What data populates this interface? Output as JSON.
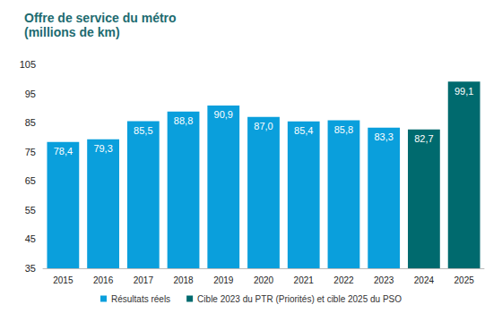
{
  "chart_data": {
    "type": "bar",
    "title": "Offre de service du métro",
    "subtitle": "(millions de km)",
    "categories": [
      "2015",
      "2016",
      "2017",
      "2018",
      "2019",
      "2020",
      "2021",
      "2022",
      "2023",
      "2024",
      "2025"
    ],
    "series": [
      {
        "name": "Résultats réels",
        "color": "#0a9fdc",
        "values": [
          78.4,
          79.3,
          85.5,
          88.8,
          90.9,
          87.0,
          85.4,
          85.8,
          83.3,
          null,
          null
        ],
        "value_labels": [
          "78,4",
          "79,3",
          "85,5",
          "88,8",
          "90,9",
          "87,0",
          "85,4",
          "85,8",
          "83,3",
          null,
          null
        ]
      },
      {
        "name": "Cible 2023 du PTR (Priorités) et cible 2025 du PSO",
        "color": "#006a6e",
        "values": [
          null,
          null,
          null,
          null,
          null,
          null,
          null,
          null,
          null,
          82.7,
          99.1
        ],
        "value_labels": [
          null,
          null,
          null,
          null,
          null,
          null,
          null,
          null,
          null,
          "82,7",
          "99,1"
        ]
      }
    ],
    "ylim": [
      35,
      105
    ],
    "yticks": [
      35,
      45,
      55,
      65,
      75,
      85,
      95,
      105
    ],
    "grid": false,
    "legend": "bottom",
    "data_labels": true
  }
}
